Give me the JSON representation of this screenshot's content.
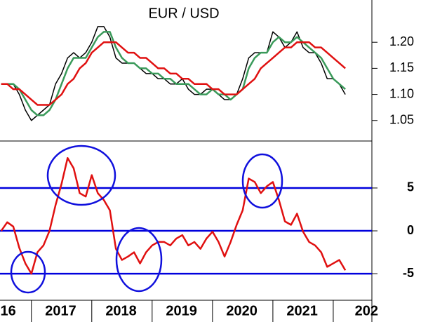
{
  "chart_data": [
    {
      "type": "line",
      "title": "EUR / USD",
      "x": [
        2016.5,
        2016.6,
        2016.7,
        2016.8,
        2016.9,
        2017.0,
        2017.1,
        2017.2,
        2017.3,
        2017.4,
        2017.5,
        2017.6,
        2017.7,
        2017.8,
        2017.9,
        2018.0,
        2018.1,
        2018.2,
        2018.3,
        2018.4,
        2018.5,
        2018.6,
        2018.7,
        2018.8,
        2018.9,
        2019.0,
        2019.1,
        2019.2,
        2019.3,
        2019.4,
        2019.5,
        2019.6,
        2019.7,
        2019.8,
        2019.9,
        2020.0,
        2020.1,
        2020.2,
        2020.3,
        2020.4,
        2020.5,
        2020.6,
        2020.7,
        2020.8,
        2020.9,
        2021.0,
        2021.1,
        2021.2,
        2021.3,
        2021.4,
        2021.5,
        2021.6,
        2021.7,
        2021.8,
        2021.9,
        2022.0,
        2022.1,
        2022.2
      ],
      "series": [
        {
          "color": "#000000",
          "values": [
            1.12,
            1.12,
            1.12,
            1.1,
            1.07,
            1.05,
            1.06,
            1.07,
            1.08,
            1.12,
            1.14,
            1.17,
            1.18,
            1.17,
            1.18,
            1.2,
            1.23,
            1.23,
            1.21,
            1.17,
            1.16,
            1.16,
            1.16,
            1.15,
            1.14,
            1.14,
            1.13,
            1.13,
            1.12,
            1.12,
            1.13,
            1.11,
            1.1,
            1.1,
            1.11,
            1.11,
            1.1,
            1.09,
            1.09,
            1.1,
            1.13,
            1.17,
            1.18,
            1.18,
            1.18,
            1.22,
            1.21,
            1.19,
            1.2,
            1.22,
            1.19,
            1.18,
            1.18,
            1.16,
            1.13,
            1.13,
            1.12,
            1.1
          ]
        },
        {
          "color": "#3a9a5a",
          "values": [
            1.12,
            1.12,
            1.12,
            1.11,
            1.09,
            1.07,
            1.06,
            1.06,
            1.07,
            1.09,
            1.12,
            1.15,
            1.17,
            1.17,
            1.17,
            1.19,
            1.21,
            1.22,
            1.22,
            1.19,
            1.17,
            1.16,
            1.16,
            1.15,
            1.15,
            1.14,
            1.14,
            1.13,
            1.13,
            1.12,
            1.12,
            1.12,
            1.11,
            1.1,
            1.1,
            1.11,
            1.1,
            1.1,
            1.09,
            1.1,
            1.11,
            1.15,
            1.17,
            1.18,
            1.18,
            1.2,
            1.21,
            1.2,
            1.2,
            1.21,
            1.2,
            1.19,
            1.18,
            1.17,
            1.15,
            1.13,
            1.12,
            1.11
          ]
        },
        {
          "color": "#e01010",
          "values": [
            1.12,
            1.12,
            1.11,
            1.11,
            1.1,
            1.09,
            1.08,
            1.08,
            1.08,
            1.09,
            1.1,
            1.12,
            1.13,
            1.15,
            1.16,
            1.18,
            1.19,
            1.2,
            1.2,
            1.2,
            1.19,
            1.18,
            1.18,
            1.17,
            1.17,
            1.16,
            1.15,
            1.15,
            1.14,
            1.14,
            1.13,
            1.13,
            1.12,
            1.12,
            1.12,
            1.11,
            1.11,
            1.1,
            1.1,
            1.1,
            1.11,
            1.12,
            1.13,
            1.15,
            1.16,
            1.17,
            1.18,
            1.19,
            1.19,
            1.2,
            1.2,
            1.2,
            1.19,
            1.19,
            1.18,
            1.17,
            1.16,
            1.15
          ]
        }
      ],
      "xlim": [
        2016.48,
        2022.64
      ],
      "ylim": [
        1.012,
        1.281
      ],
      "yticks": [
        1.05,
        {
          "value": 1.1,
          "label": "1.10"
        },
        1.15,
        {
          "value": 1.2,
          "label": "1.20"
        }
      ],
      "grid": false
    },
    {
      "type": "line",
      "x": [
        2016.5,
        2016.6,
        2016.7,
        2016.8,
        2016.9,
        2017.0,
        2017.1,
        2017.2,
        2017.3,
        2017.4,
        2017.5,
        2017.6,
        2017.7,
        2017.8,
        2017.9,
        2018.0,
        2018.1,
        2018.2,
        2018.3,
        2018.4,
        2018.5,
        2018.6,
        2018.7,
        2018.8,
        2018.9,
        2019.0,
        2019.1,
        2019.2,
        2019.3,
        2019.4,
        2019.5,
        2019.6,
        2019.7,
        2019.8,
        2019.9,
        2020.0,
        2020.1,
        2020.2,
        2020.3,
        2020.4,
        2020.5,
        2020.6,
        2020.7,
        2020.8,
        2020.9,
        2021.0,
        2021.1,
        2021.2,
        2021.3,
        2021.4,
        2021.5,
        2021.6,
        2021.7,
        2021.8,
        2021.9,
        2022.0,
        2022.1,
        2022.2
      ],
      "series": [
        {
          "color": "#e01010",
          "values": [
            0,
            1,
            0.5,
            -2,
            -3.8,
            -5,
            -2.5,
            -1.7,
            0,
            3,
            5.5,
            8.5,
            7.3,
            4.4,
            4,
            6.5,
            4.4,
            3.6,
            2.4,
            -2.1,
            -3.4,
            -3,
            -2.5,
            -3.8,
            -2.5,
            -1.7,
            -1.3,
            -1.3,
            -1.7,
            -0.9,
            -0.5,
            -1.7,
            -1.3,
            -2.1,
            -0.9,
            -0.1,
            -1.3,
            -3,
            -1.3,
            0.7,
            2.4,
            6.1,
            5.7,
            4.4,
            5.2,
            5.7,
            3.6,
            1.1,
            0.7,
            2,
            -0.1,
            -1.3,
            -1.7,
            -2.5,
            -4.2,
            -3.8,
            -3.4,
            -4.6
          ]
        }
      ],
      "xlim": [
        2016.48,
        2022.64
      ],
      "xticks": [
        {
          "value": 2016,
          "label": "16"
        },
        2017,
        2018,
        2019,
        2020,
        2021,
        {
          "value": 2022,
          "label": "202"
        }
      ],
      "ylim": [
        -8.1,
        10.4
      ],
      "yticks": [
        -5,
        0,
        5
      ],
      "grid": true,
      "grid_color": "#0000dd"
    }
  ]
}
